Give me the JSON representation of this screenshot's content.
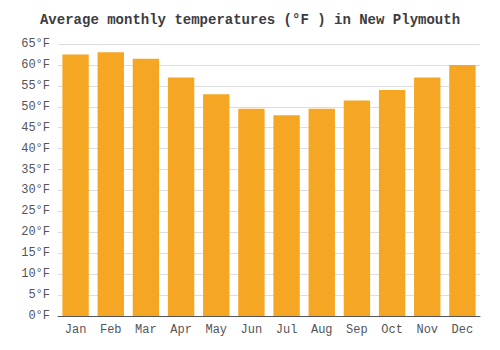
{
  "chart_data": {
    "type": "bar",
    "title": "Average monthly temperatures (°F ) in New Plymouth",
    "categories": [
      "Jan",
      "Feb",
      "Mar",
      "Apr",
      "May",
      "Jun",
      "Jul",
      "Aug",
      "Sep",
      "Oct",
      "Nov",
      "Dec"
    ],
    "values": [
      62.5,
      63.0,
      61.5,
      57.0,
      53.0,
      49.5,
      48.0,
      49.5,
      51.5,
      54.0,
      57.0,
      60.0
    ],
    "color": "#F5A623",
    "ylim": [
      0,
      65
    ],
    "yticks": [
      {
        "value": 0,
        "label": "0°F"
      },
      {
        "value": 5,
        "label": "5°F"
      },
      {
        "value": 10,
        "label": "10°F"
      },
      {
        "value": 15,
        "label": "15°F"
      },
      {
        "value": 20,
        "label": "20°F"
      },
      {
        "value": 25,
        "label": "25°F"
      },
      {
        "value": 30,
        "label": "30°F"
      },
      {
        "value": 35,
        "label": "35°F"
      },
      {
        "value": 40,
        "label": "40°F"
      },
      {
        "value": 45,
        "label": "45°F"
      },
      {
        "value": 50,
        "label": "50°F"
      },
      {
        "value": 55,
        "label": "55°F"
      },
      {
        "value": 60,
        "label": "60°F"
      },
      {
        "value": 65,
        "label": "65°F"
      }
    ],
    "grid": true
  }
}
